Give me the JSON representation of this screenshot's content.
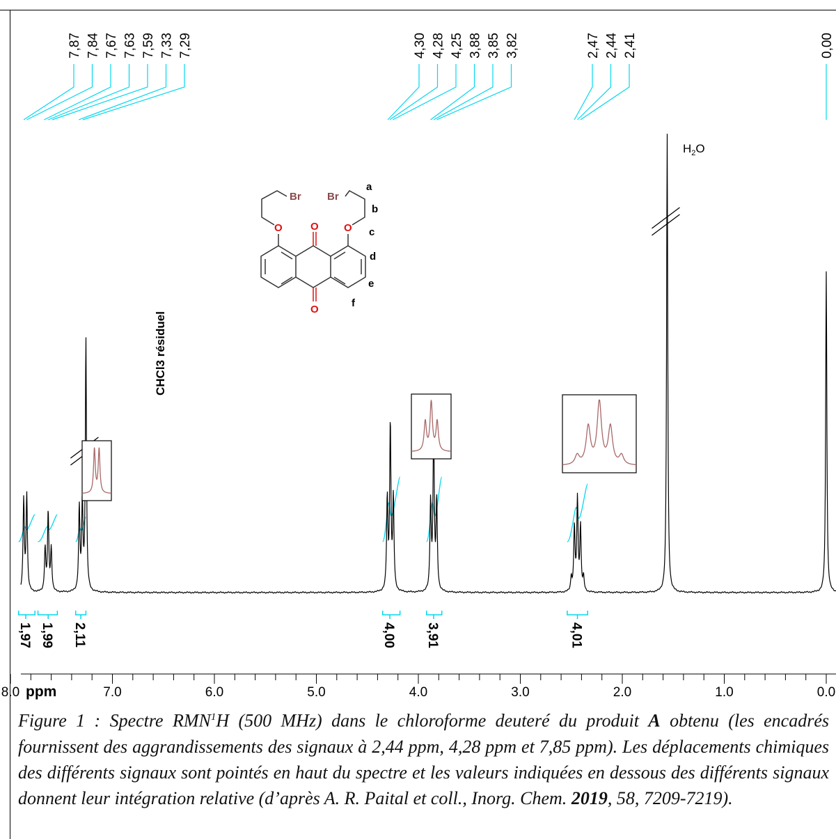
{
  "chart_data": {
    "type": "nmr_spectrum",
    "nucleus": "1H",
    "x_axis": {
      "unit_label": "ppm",
      "range": [
        8.0,
        0.0
      ],
      "tick_labels": [
        "8.0",
        "7.0",
        "6.0",
        "5.0",
        "4.0",
        "3.0",
        "2.0",
        "1.0",
        "0.0"
      ],
      "tick_values": [
        8.0,
        7.0,
        6.0,
        5.0,
        4.0,
        3.0,
        2.0,
        1.0,
        0.0
      ]
    },
    "peak_labels": [
      "7,87",
      "7,84",
      "7,67",
      "7,63",
      "7,59",
      "7,33",
      "7,29",
      "4,30",
      "4,28",
      "4,25",
      "3,88",
      "3,85",
      "3,82",
      "2,47",
      "2,44",
      "2,41",
      "0,00"
    ],
    "peak_values": [
      7.87,
      7.84,
      7.67,
      7.63,
      7.59,
      7.33,
      7.29,
      4.3,
      4.28,
      4.25,
      3.88,
      3.85,
      3.82,
      2.47,
      2.44,
      2.41,
      0.0
    ],
    "integrations": [
      {
        "label": "1,97",
        "center": 7.85,
        "from": 7.92,
        "to": 7.76
      },
      {
        "label": "1,99",
        "center": 7.63,
        "from": 7.73,
        "to": 7.54
      },
      {
        "label": "2,11",
        "center": 7.31,
        "from": 7.36,
        "to": 7.26
      },
      {
        "label": "4,00",
        "center": 4.28,
        "from": 4.35,
        "to": 4.18
      },
      {
        "label": "3,91",
        "center": 3.85,
        "from": 3.92,
        "to": 3.77
      },
      {
        "label": "4,01",
        "center": 2.44,
        "from": 2.54,
        "to": 2.34
      }
    ],
    "signals": [
      {
        "shift": 7.855,
        "height": 0.21,
        "multiplicity": "d"
      },
      {
        "shift": 7.63,
        "height": 0.17,
        "multiplicity": "t"
      },
      {
        "shift": 7.31,
        "height": 0.19,
        "multiplicity": "d"
      },
      {
        "shift": 7.26,
        "height": 0.55,
        "multiplicity": "s"
      },
      {
        "shift": 4.275,
        "height": 0.36,
        "multiplicity": "t"
      },
      {
        "shift": 3.85,
        "height": 0.35,
        "multiplicity": "t"
      },
      {
        "shift": 2.44,
        "height": 0.2,
        "multiplicity": "quint"
      },
      {
        "shift": 1.56,
        "height": 1.0,
        "multiplicity": "s"
      },
      {
        "shift": 0.0,
        "height": 0.7,
        "multiplicity": "s"
      }
    ],
    "annotations": {
      "solvent_label": "CHCl3 résiduel",
      "water_label": "H",
      "water_sub": "2",
      "water_suffix": "O"
    },
    "insets": [
      {
        "signal": "7,85",
        "multiplicity": "d"
      },
      {
        "signal": "4,28",
        "multiplicity": "t"
      },
      {
        "signal": "2,44",
        "multiplicity": "quint"
      }
    ],
    "molecule": {
      "atoms": [
        "Br",
        "Br",
        "O",
        "O",
        "O",
        "O"
      ],
      "position_labels": [
        "a",
        "b",
        "c",
        "d",
        "e",
        "f"
      ]
    },
    "colors": {
      "spectrum": "#000000",
      "labels": "#00d8ee",
      "inset": "#a86868",
      "oxygen": "#e01010",
      "bromine": "#8b4a4a"
    }
  },
  "caption": {
    "part1": "Figure 1 : Spectre RMN",
    "sup": "1",
    "part2": "H (500 MHz) dans le chloroforme deuteré du produit ",
    "product": "A",
    "part3": " obtenu (les encadrés fournissent des aggrandissements des signaux à 2,44 ppm, 4,28 ppm et 7,85 ppm). Les déplacements chimiques des différents signaux sont pointés en haut du spectre et les valeurs indiquées en dessous des différents signaux donnent leur intégration relative (d’après A. R. Paital et coll., Inorg. Chem. ",
    "year": "2019",
    "part4": ", 58, 7209-7219)."
  }
}
